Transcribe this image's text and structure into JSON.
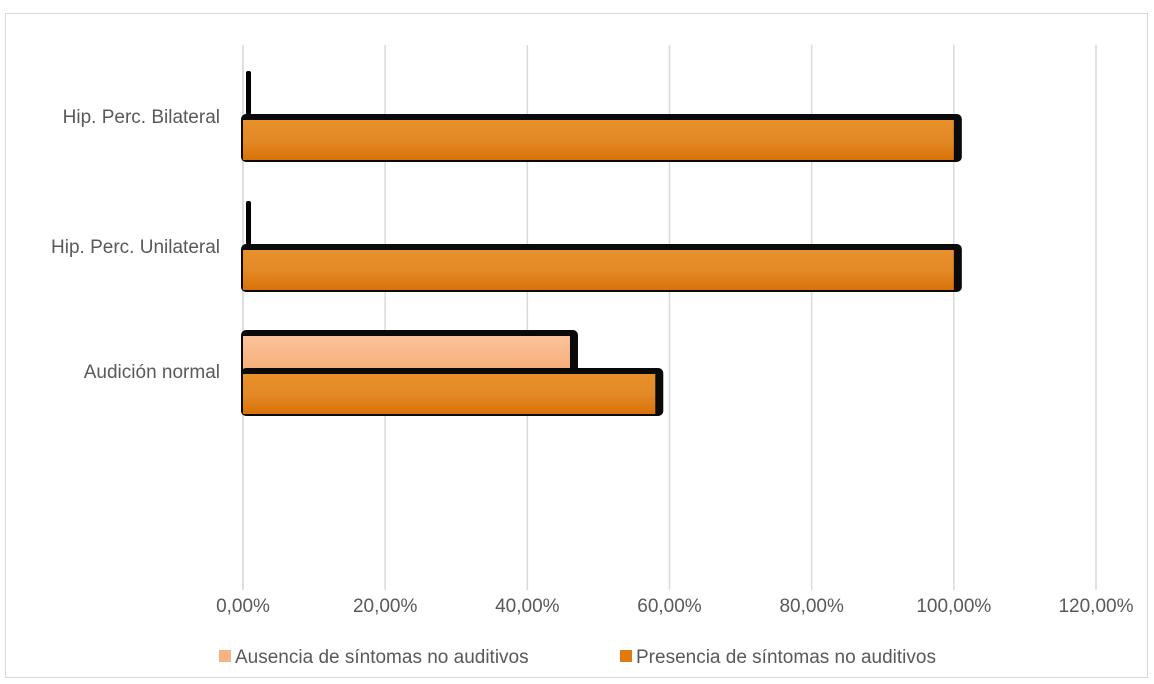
{
  "chart_data": {
    "type": "bar",
    "orientation": "horizontal",
    "categories": [
      "Hip. Perc. Bilateral",
      "Hip. Perc. Unilateral",
      "Audición normal"
    ],
    "series": [
      {
        "name": "Ausencia de síntomas no auditivos",
        "values": [
          0.0,
          0.0,
          46.0
        ],
        "color": "#f8b384"
      },
      {
        "name": "Presencia de síntomas no auditivos",
        "values": [
          100.0,
          100.0,
          58.0
        ],
        "color": "#e07a10"
      }
    ],
    "x_ticks": [
      "0,00%",
      "20,00%",
      "40,00%",
      "60,00%",
      "80,00%",
      "100,00%",
      "120,00%"
    ],
    "xlim": [
      0,
      120
    ],
    "grid": true,
    "legend_position": "bottom",
    "title": "",
    "xlabel": "",
    "ylabel": ""
  }
}
